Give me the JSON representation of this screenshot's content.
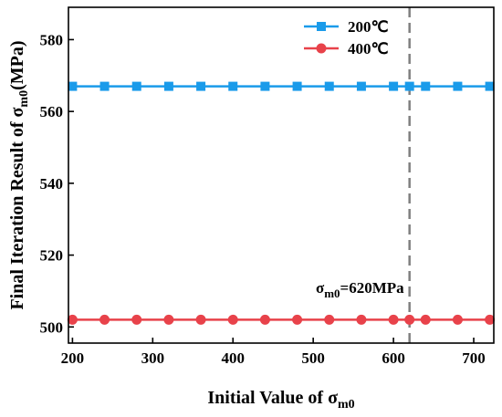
{
  "chart_data": {
    "type": "line",
    "xlabel_main": "Initial Value of σ",
    "xlabel_sub": "m0",
    "ylabel_main": "Final Iteration Result of σ",
    "ylabel_sub": "m0",
    "ylabel_tail": "(MPa)",
    "xlim": [
      195,
      725
    ],
    "ylim": [
      495.5,
      589
    ],
    "x_ticks": [
      200,
      300,
      400,
      500,
      600,
      700
    ],
    "y_ticks": [
      500,
      520,
      540,
      560,
      580
    ],
    "series": [
      {
        "name": "200℃",
        "marker": "square",
        "color": "#1a9bea",
        "x": [
          200,
          240,
          280,
          320,
          360,
          400,
          440,
          480,
          520,
          560,
          600,
          620,
          640,
          680,
          720
        ],
        "y": [
          567,
          567,
          567,
          567,
          567,
          567,
          567,
          567,
          567,
          567,
          567,
          567,
          567,
          567,
          567
        ]
      },
      {
        "name": "400℃",
        "marker": "circle",
        "color": "#e8424a",
        "x": [
          200,
          240,
          280,
          320,
          360,
          400,
          440,
          480,
          520,
          560,
          600,
          620,
          640,
          680,
          720
        ],
        "y": [
          502,
          502,
          502,
          502,
          502,
          502,
          502,
          502,
          502,
          502,
          502,
          502,
          502,
          502,
          502
        ]
      }
    ],
    "reference_line": {
      "x": 620,
      "style": "dashed",
      "color": "#808080",
      "label_main": "σ",
      "label_sub": "m0",
      "label_tail": "=620MPa"
    },
    "legend_position": "top-right",
    "grid": false
  }
}
